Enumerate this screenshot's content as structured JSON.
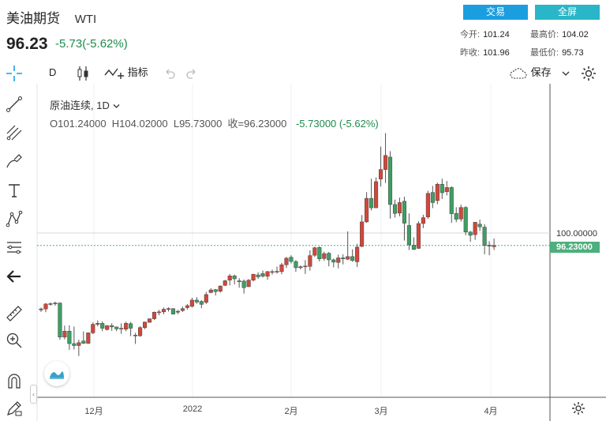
{
  "header": {
    "title": "美油期货",
    "code": "WTI",
    "price": "96.23",
    "change": "-5.73(-5.62%)",
    "buttons": {
      "trade": "交易",
      "fullscreen": "全屏"
    },
    "stats": {
      "open_label": "今开:",
      "open": "101.24",
      "high_label": "最高价:",
      "high": "104.02",
      "prev_label": "昨收:",
      "prev": "101.96",
      "low_label": "最低价:",
      "low": "95.73"
    }
  },
  "toolbar": {
    "interval": "D",
    "indicators_label": "指标",
    "save_label": "保存"
  },
  "legend": {
    "symbol": "原油连续",
    "interval": "1D",
    "ohlc": "O101.24000  H104.02000  L95.73000  收=96.23000",
    "change": "-5.73000 (-5.62%)"
  },
  "price_axis": {
    "level_label": "100.00000",
    "current_label": "96.23000"
  },
  "time_axis": {
    "labels": [
      "12月",
      "2022",
      "2月",
      "3月",
      "4月"
    ]
  },
  "colors": {
    "up": "#d2473b",
    "down": "#3f9e63",
    "accent": "#1a9ee0",
    "current_line": "#4caf7d"
  },
  "chart_data": {
    "type": "candlestick",
    "title": "原油连续",
    "xlabel": "",
    "ylabel": "",
    "ylim": [
      55,
      135
    ],
    "x": [
      "2021-11-22",
      "2021-11-23",
      "2021-11-24",
      "2021-11-25",
      "2021-11-26",
      "2021-11-29",
      "2021-11-30",
      "2021-12-01",
      "2021-12-02",
      "2021-12-03",
      "2021-12-06",
      "2021-12-07",
      "2021-12-08",
      "2021-12-09",
      "2021-12-10",
      "2021-12-13",
      "2021-12-14",
      "2021-12-15",
      "2021-12-16",
      "2021-12-17",
      "2021-12-20",
      "2021-12-21",
      "2021-12-22",
      "2021-12-23",
      "2021-12-27",
      "2021-12-28",
      "2021-12-29",
      "2021-12-30",
      "2021-12-31",
      "2022-01-03",
      "2022-01-04",
      "2022-01-05",
      "2022-01-06",
      "2022-01-07",
      "2022-01-10",
      "2022-01-11",
      "2022-01-12",
      "2022-01-13",
      "2022-01-14",
      "2022-01-18",
      "2022-01-19",
      "2022-01-20",
      "2022-01-21",
      "2022-01-24",
      "2022-01-25",
      "2022-01-26",
      "2022-01-27",
      "2022-01-28",
      "2022-01-31",
      "2022-02-01",
      "2022-02-02",
      "2022-02-03",
      "2022-02-04",
      "2022-02-07",
      "2022-02-08",
      "2022-02-09",
      "2022-02-10",
      "2022-02-11",
      "2022-02-14",
      "2022-02-15",
      "2022-02-16",
      "2022-02-17",
      "2022-02-18",
      "2022-02-22",
      "2022-02-23",
      "2022-02-24",
      "2022-02-25",
      "2022-02-28",
      "2022-03-01",
      "2022-03-02",
      "2022-03-03",
      "2022-03-04",
      "2022-03-07",
      "2022-03-08",
      "2022-03-09",
      "2022-03-10",
      "2022-03-11",
      "2022-03-14",
      "2022-03-15",
      "2022-03-16",
      "2022-03-17",
      "2022-03-18",
      "2022-03-21",
      "2022-03-22",
      "2022-03-23",
      "2022-03-24",
      "2022-03-25",
      "2022-03-28",
      "2022-03-29",
      "2022-03-30",
      "2022-03-31",
      "2022-04-01",
      "2022-04-04",
      "2022-04-05",
      "2022-04-06",
      "2022-04-07",
      "2022-04-08"
    ],
    "open": [
      76.5,
      76.8,
      78.3,
      78.4,
      78.6,
      68.2,
      70.0,
      66.2,
      65.6,
      67.0,
      66.3,
      69.5,
      72.1,
      72.4,
      70.5,
      71.7,
      71.3,
      70.9,
      70.6,
      72.3,
      68.8,
      68.6,
      71.1,
      72.7,
      73.8,
      75.8,
      75.9,
      76.7,
      76.9,
      75.8,
      76.3,
      77.2,
      77.6,
      79.5,
      79.1,
      78.8,
      81.8,
      82.7,
      82.2,
      84.0,
      85.6,
      86.9,
      85.4,
      85.3,
      83.6,
      85.6,
      87.2,
      87.6,
      86.8,
      88.2,
      88.2,
      88.2,
      90.3,
      92.6,
      91.3,
      89.4,
      89.9,
      89.8,
      93.2,
      95.6,
      92.2,
      93.8,
      91.8,
      91.0,
      92.4,
      92.0,
      92.8,
      91.2,
      95.9,
      103.4,
      110.6,
      107.7,
      116.5,
      119.4,
      123.2,
      108.7,
      106.1,
      109.7,
      102.3,
      96.3,
      95.3,
      102.9,
      104.9,
      112.4,
      109.9,
      114.9,
      112.6,
      113.9,
      106.0,
      104.3,
      107.8,
      100.3,
      99.5,
      102.7,
      101.8,
      96.3,
      95.8
    ],
    "high": [
      77.2,
      78.6,
      78.8,
      79.0,
      78.8,
      71.7,
      71.8,
      71.4,
      67.4,
      69.9,
      69.6,
      72.7,
      73.3,
      73.0,
      71.8,
      72.4,
      71.4,
      72.4,
      72.9,
      72.8,
      69.5,
      71.5,
      72.9,
      73.7,
      76.0,
      76.5,
      77.2,
      77.3,
      77.0,
      76.5,
      77.5,
      78.3,
      80.2,
      80.4,
      79.5,
      82.0,
      83.1,
      82.9,
      84.0,
      85.7,
      87.5,
      87.3,
      86.2,
      85.8,
      85.9,
      87.5,
      88.0,
      88.5,
      88.4,
      88.8,
      89.7,
      90.9,
      92.7,
      93.2,
      91.7,
      90.1,
      91.7,
      94.7,
      95.8,
      95.9,
      94.3,
      94.2,
      92.2,
      93.4,
      93.5,
      100.5,
      95.0,
      96.7,
      105.5,
      112.5,
      116.6,
      117.0,
      126.4,
      130.5,
      125.0,
      110.2,
      110.8,
      111.1,
      106.0,
      98.7,
      103.6,
      105.6,
      112.9,
      114.4,
      115.4,
      116.6,
      115.9,
      114.3,
      107.9,
      108.7,
      108.2,
      100.6,
      103.2,
      104.1,
      102.7,
      97.5,
      98.3
    ],
    "low": [
      75.9,
      75.8,
      77.8,
      77.8,
      67.4,
      67.5,
      64.3,
      64.4,
      62.4,
      66.1,
      66.1,
      69.1,
      71.5,
      70.0,
      70.2,
      70.1,
      70.0,
      69.2,
      70.0,
      68.5,
      66.1,
      68.3,
      70.6,
      72.6,
      73.4,
      74.9,
      75.2,
      76.0,
      75.3,
      75.2,
      75.9,
      76.6,
      77.2,
      78.4,
      77.0,
      78.3,
      81.6,
      80.9,
      81.8,
      83.8,
      84.0,
      84.3,
      83.3,
      81.5,
      83.5,
      85.2,
      86.0,
      86.4,
      85.7,
      87.3,
      87.6,
      87.4,
      89.3,
      90.7,
      88.1,
      88.9,
      87.5,
      88.5,
      92.7,
      91.3,
      91.5,
      89.8,
      89.5,
      89.2,
      90.4,
      91.8,
      91.2,
      89.6,
      95.7,
      103.1,
      106.9,
      107.6,
      114.2,
      115.3,
      104.4,
      104.7,
      105.1,
      97.7,
      94.8,
      94.8,
      95.2,
      101.5,
      104.3,
      107.6,
      108.8,
      110.4,
      111.5,
      103.1,
      103.3,
      103.5,
      99.3,
      97.3,
      97.9,
      100.6,
      93.5,
      93.2,
      94.8
    ],
    "close": [
      76.8,
      78.3,
      78.4,
      78.6,
      68.2,
      70.0,
      66.2,
      65.6,
      66.5,
      66.3,
      69.5,
      72.1,
      72.4,
      70.9,
      71.7,
      71.3,
      70.7,
      70.9,
      72.4,
      70.9,
      68.6,
      71.1,
      72.8,
      73.8,
      75.8,
      75.9,
      76.7,
      76.9,
      75.2,
      76.1,
      76.9,
      77.8,
      79.5,
      78.9,
      78.2,
      81.2,
      82.6,
      82.1,
      83.8,
      85.4,
      86.9,
      86.0,
      85.1,
      83.3,
      85.6,
      87.4,
      86.6,
      86.8,
      88.2,
      88.2,
      88.3,
      90.3,
      92.3,
      91.3,
      89.4,
      89.7,
      89.9,
      93.1,
      95.5,
      92.1,
      93.7,
      91.8,
      91.1,
      92.4,
      92.1,
      92.8,
      91.6,
      95.7,
      103.4,
      110.6,
      107.7,
      115.7,
      119.4,
      123.7,
      108.7,
      106.0,
      109.3,
      103.0,
      96.4,
      95.0,
      102.9,
      104.7,
      112.1,
      109.3,
      114.9,
      112.3,
      113.9,
      105.9,
      104.2,
      107.8,
      100.3,
      99.3,
      103.3,
      101.9,
      96.2,
      96.0,
      96.2
    ]
  }
}
